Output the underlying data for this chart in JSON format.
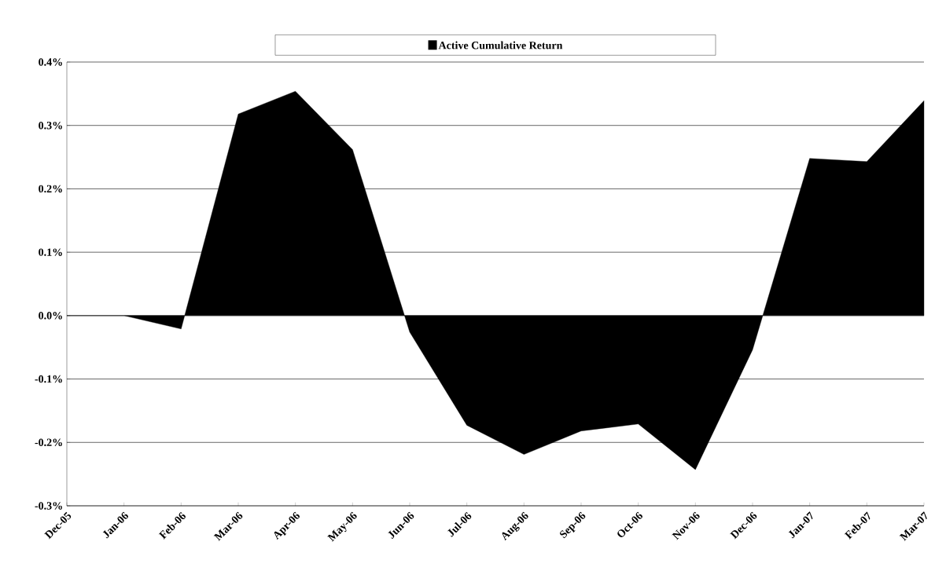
{
  "chart_data": {
    "type": "area",
    "categories": [
      "Dec-05",
      "Jan-06",
      "Feb-06",
      "Mar-06",
      "Apr-06",
      "May-06",
      "Jun-06",
      "Jul-06",
      "Aug-06",
      "Sep-06",
      "Oct-06",
      "Nov-06",
      "Dec-06",
      "Jan-07",
      "Feb-07",
      "Mar-07"
    ],
    "series": [
      {
        "name": "Active Cumulative Return",
        "color": "#000000",
        "values": [
          0,
          0,
          -0.021,
          0.318,
          0.354,
          0.262,
          -0.026,
          -0.173,
          -0.219,
          -0.182,
          -0.171,
          -0.243,
          -0.054,
          0.248,
          0.243,
          0.339
        ]
      }
    ],
    "ylim": [
      -0.3,
      0.4
    ],
    "yticks": [
      {
        "value": -0.3,
        "label": "-0.3%"
      },
      {
        "value": -0.2,
        "label": "-0.2%"
      },
      {
        "value": -0.1,
        "label": "-0.1%"
      },
      {
        "value": 0,
        "label": "0.0%"
      },
      {
        "value": 0.1,
        "label": "0.1%"
      },
      {
        "value": 0.2,
        "label": "0.2%"
      },
      {
        "value": 0.3,
        "label": "0.3%"
      },
      {
        "value": 0.4,
        "label": "0.4%"
      }
    ],
    "grid": "y",
    "legend": "top"
  }
}
